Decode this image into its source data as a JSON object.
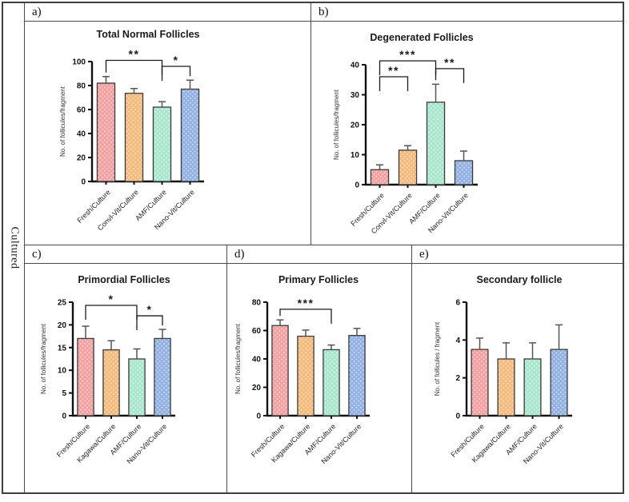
{
  "side_label": "Cultured",
  "style": {
    "bar_fills": [
      "#F2A0A0",
      "#F4BA7C",
      "#A8E6CD",
      "#92B1E2"
    ],
    "bar_stroke": "#3a3a3a",
    "axis_color": "#111111",
    "error_bar_color": "#555555",
    "sig_color": "#1a1a1a"
  },
  "chart_data": [
    {
      "type": "bar",
      "panel_label": "a)",
      "title": "Total Normal Follicles",
      "xlabel": "",
      "ylabel": "No. of follicules/fragment",
      "categories": [
        "Fresh/Culture",
        "Convl-Vit/Culture",
        "AMF/Culture",
        "Nano-Vit/Culture"
      ],
      "values": [
        82,
        73.5,
        62,
        77
      ],
      "errors": [
        5.5,
        4,
        4.5,
        7.5
      ],
      "ylim": [
        0,
        100
      ],
      "yticks": [
        0,
        20,
        40,
        60,
        80,
        100
      ],
      "grid": false,
      "significance": [
        {
          "from": 0,
          "to": 2,
          "label": "**",
          "y": 101
        },
        {
          "from": 2,
          "to": 3,
          "label": "*",
          "y": 96
        }
      ]
    },
    {
      "type": "bar",
      "panel_label": "b)",
      "title": "Degenerated Follicles",
      "xlabel": "",
      "ylabel": "No. of follicules/fragment",
      "categories": [
        "Fresh/Culture",
        "Convl-Vit/Culture",
        "AMF/Culture",
        "Nano-Vit/Culture"
      ],
      "values": [
        5,
        11.5,
        27.5,
        8
      ],
      "errors": [
        1.6,
        1.5,
        6,
        3.2
      ],
      "ylim": [
        0,
        40
      ],
      "yticks": [
        0,
        10,
        20,
        30,
        40
      ],
      "grid": false,
      "significance": [
        {
          "from": 0,
          "to": 2,
          "label": "***",
          "y": 41.3
        },
        {
          "from": 0,
          "to": 1,
          "label": "**",
          "y": 36
        },
        {
          "from": 2,
          "to": 3,
          "label": "**",
          "y": 38.7
        }
      ]
    },
    {
      "type": "bar",
      "panel_label": "c)",
      "title": "Primordial Follicles",
      "xlabel": "",
      "ylabel": "No. of follicules/fragment",
      "categories": [
        "Fresh/Culture",
        "Kagawa/Culture",
        "AMF/Culture",
        "Nano-Vit/Culture"
      ],
      "values": [
        17,
        14.5,
        12.5,
        17
      ],
      "errors": [
        2.7,
        2,
        2.2,
        2
      ],
      "ylim": [
        0,
        25
      ],
      "yticks": [
        0,
        5,
        10,
        15,
        20,
        25
      ],
      "grid": false,
      "significance": [
        {
          "from": 0,
          "to": 2,
          "label": "*",
          "y": 24.3
        },
        {
          "from": 2,
          "to": 3,
          "label": "*",
          "y": 22
        }
      ]
    },
    {
      "type": "bar",
      "panel_label": "d)",
      "title": "Primary Follicles",
      "xlabel": "",
      "ylabel": "No. of follicules/fragment",
      "categories": [
        "Fresh/Culture",
        "Kagawa/Culture",
        "AMF/Culture",
        "Nano-Vit/Culture"
      ],
      "values": [
        63.5,
        56,
        46.5,
        56.5
      ],
      "errors": [
        4,
        4.3,
        3.3,
        5
      ],
      "ylim": [
        0,
        80
      ],
      "yticks": [
        0,
        20,
        40,
        60,
        80
      ],
      "grid": false,
      "significance": [
        {
          "from": 0,
          "to": 2,
          "label": "***",
          "y": 75
        }
      ]
    },
    {
      "type": "bar",
      "panel_label": "e)",
      "title": "Secondary follicle",
      "xlabel": "",
      "ylabel": "No. of follicules / fragment",
      "categories": [
        "Fresh/Culture",
        "Kagawa/Culture",
        "AMF/Culture",
        "Nano-Vit/Culture"
      ],
      "values": [
        3.5,
        3,
        3,
        3.5
      ],
      "errors": [
        0.6,
        0.85,
        0.85,
        1.3
      ],
      "ylim": [
        0,
        6
      ],
      "yticks": [
        0,
        2,
        4,
        6
      ],
      "grid": false,
      "significance": []
    }
  ]
}
